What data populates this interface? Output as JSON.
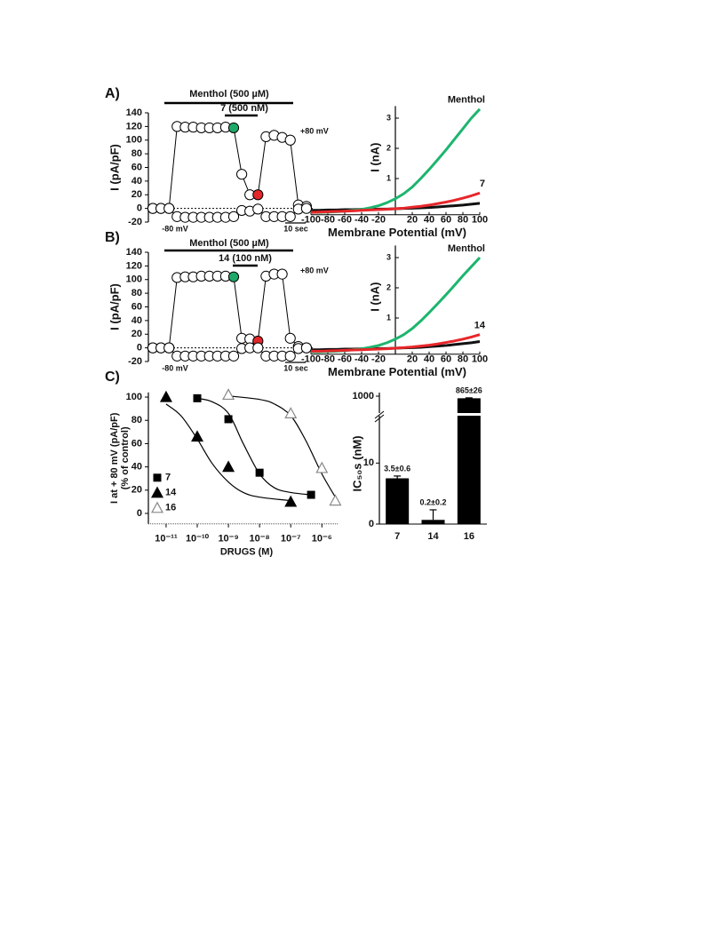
{
  "panels": [
    "A)",
    "B)",
    "C)"
  ],
  "chart_data": [
    {
      "type": "timecourse",
      "ylabel": "I (pA/pF)",
      "ylim": [
        -20,
        140
      ],
      "yticks": [
        -20,
        0,
        20,
        40,
        60,
        80,
        100,
        120,
        140
      ],
      "zero_line": true,
      "drugs": [
        "Menthol (500 µM)",
        "7 (500 nM)"
      ],
      "annotations": [
        "+80 mV",
        "-80 mV",
        "10 sec"
      ],
      "series": [
        {
          "color": "#000000",
          "values": [
            0,
            0,
            0,
            120,
            119,
            119,
            118,
            118,
            118,
            119,
            118,
            50,
            20,
            20,
            105,
            107,
            104,
            100,
            5,
            3
          ],
          "marker_colors": [
            "#ffffff",
            "#ffffff",
            "#ffffff",
            "#ffffff",
            "#ffffff",
            "#ffffff",
            "#ffffff",
            "#ffffff",
            "#ffffff",
            "#ffffff",
            "#1fa968",
            "#ffffff",
            "#ffffff",
            "#e3262b",
            "#ffffff",
            "#ffffff",
            "#ffffff",
            "#ffffff",
            "#ffffff",
            "#ffffff"
          ]
        },
        {
          "color": "#000000",
          "values": [
            0,
            0,
            0,
            -12,
            -13,
            -13,
            -13,
            -13,
            -13,
            -13,
            -12,
            -3,
            -4,
            -1,
            -12,
            -12,
            -12,
            -12,
            -1,
            0
          ]
        }
      ]
    },
    {
      "type": "line",
      "xlabel": "Membrane Potential (mV)",
      "ylabel": "I (nA)",
      "x": [
        -100,
        -90,
        -80,
        -70,
        -60,
        -50,
        -40,
        -30,
        -20,
        -10,
        0,
        10,
        20,
        30,
        40,
        50,
        60,
        70,
        80,
        90,
        100
      ],
      "xlim": [
        -100,
        100
      ],
      "ylim": [
        -0.2,
        3.4
      ],
      "xticks": [
        -100,
        -80,
        -60,
        -40,
        -20,
        20,
        40,
        60,
        80,
        100
      ],
      "yticks": [
        1,
        2,
        3
      ],
      "series": [
        {
          "color": "#111111",
          "values": [
            -0.05,
            -0.05,
            -0.04,
            -0.04,
            -0.03,
            -0.03,
            -0.02,
            -0.02,
            -0.01,
            -0.01,
            0,
            0.01,
            0.02,
            0.03,
            0.04,
            0.06,
            0.08,
            0.1,
            0.12,
            0.15,
            0.18
          ]
        },
        {
          "name": "Menthol",
          "color": "#1db56e",
          "values": [
            -0.12,
            -0.12,
            -0.11,
            -0.1,
            -0.08,
            -0.05,
            -0.02,
            0.03,
            0.1,
            0.2,
            0.33,
            0.5,
            0.72,
            1.0,
            1.3,
            1.62,
            1.95,
            2.3,
            2.65,
            3.0,
            3.3
          ]
        },
        {
          "name": "7",
          "color": "#e8262a",
          "values": [
            -0.12,
            -0.11,
            -0.1,
            -0.09,
            -0.08,
            -0.07,
            -0.05,
            -0.04,
            -0.03,
            -0.02,
            0,
            0.02,
            0.05,
            0.08,
            0.12,
            0.17,
            0.22,
            0.28,
            0.35,
            0.43,
            0.52
          ]
        }
      ]
    },
    {
      "type": "timecourse",
      "ylabel": "I (pA/pF)",
      "ylim": [
        -20,
        140
      ],
      "yticks": [
        -20,
        0,
        20,
        40,
        60,
        80,
        100,
        120,
        140
      ],
      "zero_line": true,
      "drugs": [
        "Menthol (500 µM)",
        "14 (100 nM)"
      ],
      "annotations": [
        "+80 mV",
        "-80 mV",
        "10 sec"
      ],
      "series": [
        {
          "color": "#000000",
          "values": [
            0,
            0,
            0,
            103,
            104,
            104,
            105,
            105,
            105,
            105,
            104,
            14,
            13,
            10,
            105,
            108,
            108,
            14,
            2,
            0
          ],
          "marker_colors": [
            "#ffffff",
            "#ffffff",
            "#ffffff",
            "#ffffff",
            "#ffffff",
            "#ffffff",
            "#ffffff",
            "#ffffff",
            "#ffffff",
            "#ffffff",
            "#1fa968",
            "#ffffff",
            "#ffffff",
            "#e3262b",
            "#ffffff",
            "#ffffff",
            "#ffffff",
            "#ffffff",
            "#ffffff",
            "#ffffff"
          ]
        },
        {
          "color": "#000000",
          "values": [
            0,
            0,
            0,
            -12,
            -12,
            -12,
            -12,
            -12,
            -12,
            -12,
            -12,
            -1,
            0,
            0,
            -12,
            -12,
            -12,
            -12,
            -1,
            0
          ]
        }
      ]
    },
    {
      "type": "line",
      "xlabel": "Membrane Potential (mV)",
      "ylabel": "I (nA)",
      "x": [
        -100,
        -90,
        -80,
        -70,
        -60,
        -50,
        -40,
        -30,
        -20,
        -10,
        0,
        10,
        20,
        30,
        40,
        50,
        60,
        70,
        80,
        90,
        100
      ],
      "xlim": [
        -100,
        100
      ],
      "ylim": [
        -0.2,
        3.4
      ],
      "xticks": [
        -100,
        -80,
        -60,
        -40,
        -20,
        20,
        40,
        60,
        80,
        100
      ],
      "yticks": [
        1,
        2,
        3
      ],
      "series": [
        {
          "color": "#111111",
          "values": [
            -0.05,
            -0.05,
            -0.04,
            -0.04,
            -0.03,
            -0.03,
            -0.02,
            -0.02,
            -0.01,
            -0.01,
            0,
            0.01,
            0.02,
            0.03,
            0.05,
            0.07,
            0.09,
            0.12,
            0.15,
            0.18,
            0.22
          ]
        },
        {
          "name": "Menthol",
          "color": "#1db56e",
          "values": [
            -0.12,
            -0.12,
            -0.11,
            -0.1,
            -0.08,
            -0.05,
            -0.02,
            0.03,
            0.09,
            0.18,
            0.3,
            0.45,
            0.65,
            0.9,
            1.18,
            1.47,
            1.77,
            2.08,
            2.4,
            2.7,
            3.0
          ]
        },
        {
          "name": "14",
          "color": "#e8262a",
          "values": [
            -0.1,
            -0.1,
            -0.09,
            -0.08,
            -0.07,
            -0.06,
            -0.05,
            -0.04,
            -0.03,
            -0.02,
            0,
            0.02,
            0.04,
            0.07,
            0.1,
            0.14,
            0.19,
            0.24,
            0.3,
            0.37,
            0.45
          ]
        }
      ]
    },
    {
      "type": "scatter",
      "xlabel": "DRUGS (M)",
      "ylabel": [
        "I at + 80 mV (pA/pF)",
        "(% of control)"
      ],
      "log_x": true,
      "xlim": [
        2.7e-12,
        3.2e-06
      ],
      "ylim": [
        -9,
        104
      ],
      "xticks": [
        {
          "value": 1e-11,
          "label": "10⁻¹¹"
        },
        {
          "value": 1e-10,
          "label": "10⁻¹⁰"
        },
        {
          "value": 1e-09,
          "label": "10⁻⁹"
        },
        {
          "value": 1e-08,
          "label": "10⁻⁸"
        },
        {
          "value": 1e-07,
          "label": "10⁻⁷"
        },
        {
          "value": 1e-06,
          "label": "10⁻⁶"
        }
      ],
      "yticks": [
        0,
        20,
        40,
        60,
        80,
        100
      ],
      "legend": "lower left",
      "series": [
        {
          "name": "7",
          "marker": "square",
          "color": "#000000",
          "x": [
            1e-10,
            1e-09,
            1e-08,
            4.5e-07
          ],
          "values": [
            99,
            81,
            35,
            16
          ],
          "fit_x": [
            1e-10,
            3e-10,
            1e-09,
            3e-09,
            1e-08,
            3e-08,
            1e-07,
            4.5e-07
          ],
          "fit_values": [
            99,
            96,
            86,
            60,
            34,
            22,
            18,
            16
          ]
        },
        {
          "name": "14",
          "marker": "triangle",
          "color": "#000000",
          "x": [
            1e-11,
            1e-10,
            1e-09,
            1e-07
          ],
          "values": [
            100,
            66,
            40,
            10
          ],
          "fit_x": [
            1e-11,
            3e-11,
            1e-10,
            3e-10,
            1e-09,
            3e-09,
            1e-08,
            1e-07
          ],
          "fit_values": [
            94,
            84,
            64,
            43,
            27,
            18,
            14,
            11
          ]
        },
        {
          "name": "16",
          "marker": "open-triangle",
          "color": "#000000",
          "x": [
            1e-09,
            1e-07,
            1e-06,
            2.7e-06
          ],
          "values": [
            102,
            86,
            39,
            11
          ],
          "fit_x": [
            1e-09,
            1e-08,
            3e-08,
            1e-07,
            3e-07,
            1e-06,
            3e-06
          ],
          "fit_values": [
            101,
            98,
            94,
            84,
            63,
            34,
            12
          ]
        }
      ]
    },
    {
      "type": "bar",
      "ylabel": "IC₅₀s (nM)",
      "log_y": true,
      "ylim": [
        0.15,
        1000
      ],
      "yticks": [
        0,
        10,
        1000
      ],
      "axis_break": true,
      "categories": [
        "7",
        "14",
        "16"
      ],
      "values": [
        3.5,
        0.2,
        865
      ],
      "errors": [
        0.6,
        0.2,
        26
      ],
      "value_labels": [
        "3.5±0.6",
        "0.2±0.2",
        "865±26"
      ],
      "color": "#000000"
    }
  ]
}
